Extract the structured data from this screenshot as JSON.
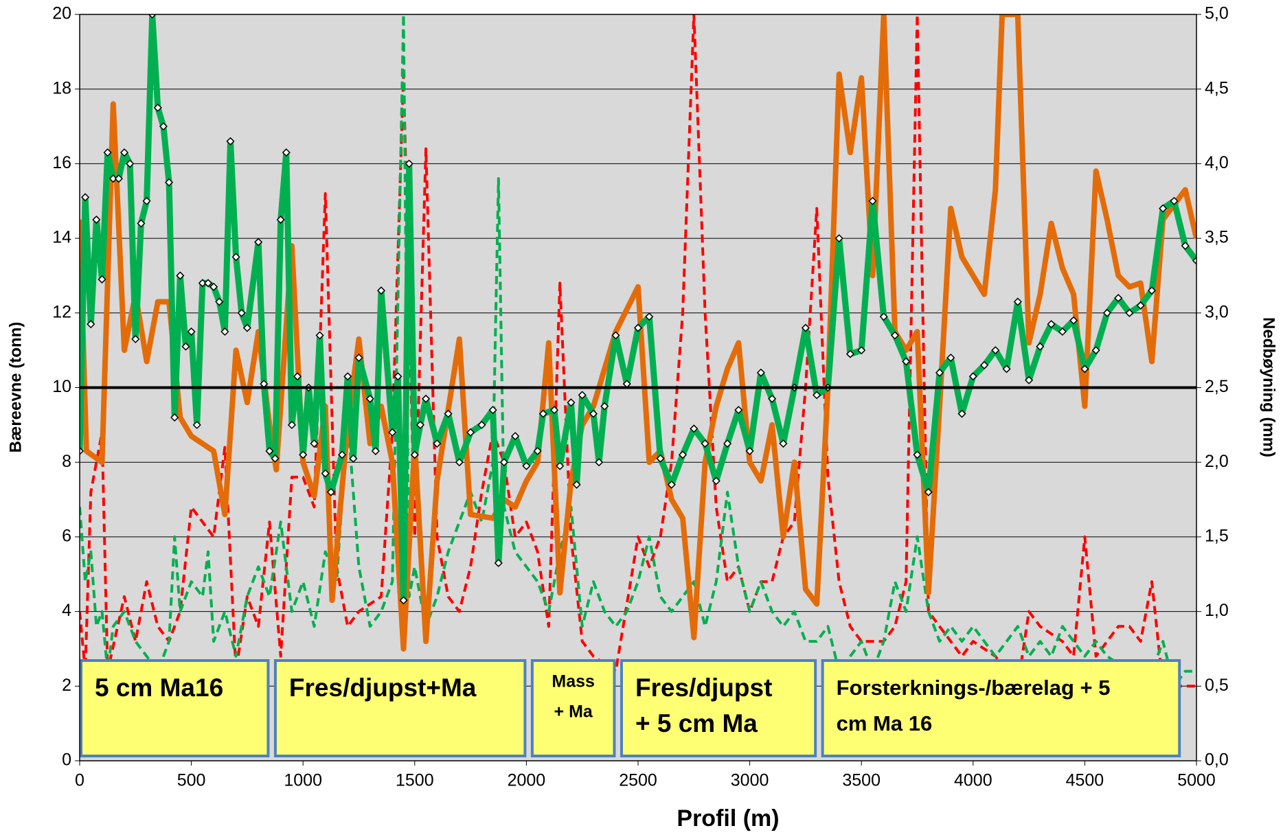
{
  "chart_data": {
    "type": "line",
    "xlabel": "Profil (m)",
    "ylabel": "Bæreevne (tonn)",
    "y2label": "Nedbøyning (mm)",
    "xlim": [
      0,
      5000
    ],
    "xticks": [
      0,
      500,
      1000,
      1500,
      2000,
      2500,
      3000,
      3500,
      4000,
      4500,
      5000
    ],
    "ylim": [
      0,
      20
    ],
    "yticks": [
      0,
      2,
      4,
      6,
      8,
      10,
      12,
      14,
      16,
      18,
      20
    ],
    "y2lim": [
      0,
      5
    ],
    "y2ticks": [
      {
        "value": 0,
        "label": "0,0"
      },
      {
        "value": 0.5,
        "label": "0,5"
      },
      {
        "value": 1,
        "label": "1,0"
      },
      {
        "value": 1.5,
        "label": "1,5"
      },
      {
        "value": 2,
        "label": "2,0"
      },
      {
        "value": 2.5,
        "label": "2,5"
      },
      {
        "value": 3,
        "label": "3,0"
      },
      {
        "value": 3.5,
        "label": "3,5"
      },
      {
        "value": 4,
        "label": "4,0"
      },
      {
        "value": 4.5,
        "label": "4,5"
      },
      {
        "value": 5,
        "label": "5,0"
      }
    ],
    "grid": true,
    "background": "#d9d9d9",
    "reference_line": {
      "value": 10,
      "color": "#000000"
    },
    "series": [
      {
        "color": "#ff0000",
        "axis": "y2",
        "dash": true,
        "x": [
          0,
          25,
          50,
          100,
          125,
          200,
          250,
          300,
          350,
          400,
          450,
          500,
          550,
          600,
          650,
          700,
          750,
          800,
          850,
          900,
          950,
          1000,
          1050,
          1100,
          1150,
          1200,
          1250,
          1350,
          1400,
          1450,
          1500,
          1550,
          1600,
          1650,
          1700,
          1750,
          1800,
          1850,
          1900,
          1950,
          2000,
          2050,
          2100,
          2150,
          2200,
          2250,
          2300,
          2400,
          2500,
          2550,
          2600,
          2650,
          2700,
          2750,
          2800,
          2850,
          2900,
          2950,
          3000,
          3050,
          3100,
          3150,
          3200,
          3250,
          3300,
          3350,
          3400,
          3450,
          3500,
          3600,
          3650,
          3700,
          3750,
          3800,
          3850,
          3900,
          3950,
          4000,
          4100,
          4200,
          4250,
          4300,
          4400,
          4450,
          4500,
          4550,
          4600,
          4650,
          4700,
          4750,
          4800,
          4850,
          4900,
          5000
        ],
        "values": [
          1.0,
          0.6,
          1.8,
          2.2,
          0.6,
          1.1,
          0.8,
          1.2,
          0.9,
          0.8,
          1.0,
          1.7,
          1.6,
          1.5,
          2.1,
          0.6,
          1.1,
          0.9,
          1.6,
          0.7,
          1.9,
          1.9,
          1.7,
          3.8,
          1.3,
          0.9,
          1.0,
          1.1,
          2.2,
          4.6,
          1.5,
          4.1,
          1.5,
          1.1,
          1.0,
          1.3,
          1.8,
          2.2,
          2.0,
          1.5,
          1.6,
          1.4,
          0.9,
          3.2,
          1.5,
          0.8,
          0.7,
          0.6,
          1.5,
          1.3,
          1.5,
          2.0,
          3.0,
          5.0,
          3.0,
          1.7,
          1.2,
          1.3,
          1.0,
          1.2,
          1.2,
          1.5,
          1.6,
          2.5,
          3.7,
          1.9,
          1.2,
          0.9,
          0.8,
          0.8,
          0.9,
          1.2,
          5.0,
          1.0,
          0.9,
          0.8,
          0.7,
          0.8,
          0.7,
          0.5,
          1.0,
          0.9,
          0.8,
          0.7,
          1.5,
          0.7,
          0.8,
          0.9,
          0.9,
          0.8,
          1.2,
          0.5,
          0.5,
          0.5
        ]
      },
      {
        "color": "#00b050",
        "axis": "y2",
        "dash": true,
        "x": [
          0,
          25,
          50,
          75,
          100,
          125,
          150,
          200,
          250,
          300,
          350,
          400,
          425,
          450,
          500,
          550,
          575,
          600,
          650,
          700,
          750,
          800,
          850,
          900,
          950,
          1000,
          1050,
          1100,
          1150,
          1200,
          1250,
          1300,
          1350,
          1400,
          1450,
          1475,
          1500,
          1550,
          1600,
          1650,
          1700,
          1750,
          1800,
          1850,
          1875,
          1900,
          1950,
          2000,
          2050,
          2100,
          2150,
          2200,
          2250,
          2300,
          2350,
          2400,
          2450,
          2500,
          2550,
          2600,
          2650,
          2700,
          2750,
          2800,
          2850,
          2900,
          2950,
          3000,
          3050,
          3100,
          3150,
          3200,
          3250,
          3300,
          3350,
          3400,
          3450,
          3500,
          3550,
          3600,
          3650,
          3700,
          3750,
          3800,
          3850,
          3900,
          3950,
          4000,
          4050,
          4100,
          4150,
          4200,
          4250,
          4300,
          4350,
          4400,
          4450,
          4500,
          4550,
          4600,
          4700,
          4800,
          4850,
          4900,
          4950,
          5000
        ],
        "values": [
          1.7,
          1.2,
          1.4,
          0.9,
          1.0,
          0.6,
          0.9,
          1.0,
          0.8,
          0.7,
          0.6,
          0.8,
          1.5,
          1.0,
          1.2,
          1.1,
          1.4,
          0.8,
          1.0,
          0.7,
          1.1,
          1.3,
          1.1,
          1.6,
          1.0,
          1.2,
          0.9,
          1.4,
          1.2,
          2.3,
          1.3,
          0.9,
          1.0,
          1.2,
          5.0,
          1.1,
          1.3,
          0.9,
          1.1,
          1.4,
          1.6,
          1.8,
          1.6,
          2.0,
          3.9,
          1.7,
          1.4,
          1.3,
          1.2,
          1.0,
          1.4,
          1.7,
          0.9,
          1.2,
          1.0,
          0.9,
          1.0,
          1.2,
          1.5,
          1.1,
          1.0,
          1.1,
          1.2,
          0.9,
          1.2,
          1.8,
          1.3,
          1.0,
          1.2,
          1.0,
          0.9,
          1.0,
          0.8,
          0.8,
          0.9,
          0.6,
          0.7,
          0.8,
          0.6,
          0.8,
          1.2,
          1.0,
          1.5,
          1.0,
          0.8,
          0.9,
          0.8,
          0.9,
          0.8,
          0.7,
          0.8,
          0.9,
          0.7,
          0.8,
          0.7,
          0.9,
          0.8,
          0.7,
          0.8,
          0.7,
          0.6,
          0.6,
          0.8,
          0.5,
          0.6,
          0.6
        ]
      },
      {
        "color": "#e36c09",
        "x": [
          0,
          30,
          100,
          150,
          200,
          250,
          300,
          350,
          400,
          450,
          500,
          600,
          650,
          700,
          750,
          800,
          850,
          880,
          950,
          1000,
          1050,
          1100,
          1130,
          1200,
          1250,
          1300,
          1350,
          1400,
          1450,
          1500,
          1550,
          1600,
          1700,
          1750,
          1850,
          1900,
          1950,
          2000,
          2050,
          2100,
          2150,
          2200,
          2250,
          2300,
          2350,
          2400,
          2500,
          2550,
          2600,
          2650,
          2700,
          2750,
          2800,
          2850,
          2900,
          2950,
          3000,
          3050,
          3100,
          3150,
          3200,
          3250,
          3300,
          3350,
          3400,
          3450,
          3500,
          3550,
          3600,
          3650,
          3700,
          3750,
          3800,
          3850,
          3900,
          3950,
          4050,
          4100,
          4130,
          4200,
          4250,
          4300,
          4350,
          4400,
          4450,
          4500,
          4550,
          4600,
          4650,
          4700,
          4750,
          4800,
          4850,
          4950,
          5000
        ],
        "values": [
          14.5,
          8.3,
          8.0,
          17.6,
          11.0,
          12.5,
          10.7,
          12.3,
          12.3,
          9.2,
          8.7,
          8.3,
          6.6,
          11.0,
          9.6,
          11.5,
          9.0,
          7.8,
          13.8,
          8.0,
          7.1,
          9.5,
          4.3,
          9.0,
          11.3,
          8.5,
          9.5,
          8.0,
          3.0,
          8.5,
          3.2,
          7.5,
          11.3,
          6.6,
          6.5,
          7.0,
          6.8,
          7.5,
          8.0,
          11.2,
          4.5,
          7.5,
          9.0,
          9.5,
          10.5,
          11.5,
          12.7,
          8.0,
          8.3,
          7.0,
          6.5,
          3.3,
          8.0,
          9.5,
          10.5,
          11.2,
          8.0,
          7.5,
          9.0,
          6.0,
          8.0,
          4.6,
          4.2,
          10.0,
          18.4,
          16.3,
          18.3,
          13.0,
          20.0,
          11.5,
          11.0,
          11.5,
          4.5,
          9.5,
          14.8,
          13.5,
          12.5,
          15.3,
          20.0,
          20.0,
          11.2,
          12.5,
          14.4,
          13.2,
          12.5,
          9.5,
          15.8,
          14.5,
          13.0,
          12.7,
          12.8,
          10.7,
          14.5,
          15.3,
          14.0
        ]
      },
      {
        "color": "#00b050",
        "markers": true,
        "x": [
          0,
          25,
          50,
          75,
          100,
          125,
          150,
          175,
          200,
          225,
          250,
          275,
          300,
          325,
          350,
          375,
          400,
          425,
          450,
          475,
          500,
          525,
          550,
          575,
          600,
          625,
          650,
          675,
          700,
          725,
          750,
          800,
          825,
          850,
          875,
          900,
          925,
          950,
          975,
          1000,
          1025,
          1050,
          1075,
          1100,
          1125,
          1175,
          1200,
          1225,
          1250,
          1300,
          1325,
          1350,
          1400,
          1425,
          1450,
          1475,
          1500,
          1525,
          1550,
          1600,
          1650,
          1700,
          1750,
          1800,
          1850,
          1875,
          1900,
          1950,
          2000,
          2050,
          2075,
          2125,
          2150,
          2200,
          2225,
          2250,
          2300,
          2325,
          2350,
          2400,
          2450,
          2500,
          2550,
          2600,
          2650,
          2700,
          2750,
          2800,
          2850,
          2900,
          2950,
          3000,
          3050,
          3100,
          3150,
          3200,
          3250,
          3300,
          3350,
          3400,
          3450,
          3500,
          3550,
          3600,
          3650,
          3700,
          3750,
          3800,
          3850,
          3900,
          3950,
          4000,
          4050,
          4100,
          4150,
          4200,
          4250,
          4300,
          4350,
          4400,
          4450,
          4500,
          4550,
          4600,
          4650,
          4700,
          4750,
          4800,
          4850,
          4900,
          4950,
          5000
        ],
        "values": [
          8.3,
          15.1,
          11.7,
          14.5,
          12.9,
          16.3,
          15.6,
          15.6,
          16.3,
          16.0,
          11.3,
          14.4,
          15.0,
          20.0,
          17.5,
          17.0,
          15.5,
          9.2,
          13.0,
          11.1,
          11.5,
          9.0,
          12.8,
          12.8,
          12.7,
          12.3,
          11.5,
          16.6,
          13.5,
          12.0,
          11.6,
          13.9,
          10.1,
          8.3,
          8.1,
          14.5,
          16.3,
          9.0,
          10.3,
          8.2,
          10.0,
          8.5,
          11.4,
          7.7,
          7.2,
          8.2,
          10.3,
          8.1,
          10.8,
          9.7,
          8.3,
          12.6,
          8.8,
          10.3,
          4.3,
          16.0,
          8.2,
          9.0,
          9.7,
          8.5,
          9.3,
          8.0,
          8.8,
          9.0,
          9.4,
          5.3,
          8.0,
          8.7,
          7.9,
          8.3,
          9.3,
          9.4,
          7.9,
          9.6,
          7.4,
          9.8,
          9.3,
          8.0,
          9.5,
          11.4,
          10.1,
          11.6,
          11.9,
          8.1,
          7.4,
          8.2,
          8.9,
          8.5,
          7.5,
          8.5,
          9.4,
          8.3,
          10.4,
          9.7,
          8.5,
          10.0,
          11.6,
          9.8,
          10.0,
          14.0,
          10.9,
          11.0,
          15.0,
          11.9,
          11.4,
          10.7,
          8.2,
          7.2,
          10.4,
          10.8,
          9.3,
          10.3,
          10.6,
          11.0,
          10.5,
          12.3,
          10.2,
          11.1,
          11.7,
          11.5,
          11.8,
          10.5,
          11.0,
          12.0,
          12.4,
          12.0,
          12.2,
          12.6,
          14.8,
          15.0,
          13.8,
          13.4
        ]
      }
    ],
    "sections": [
      {
        "lines": [
          "5 cm Ma16"
        ],
        "start": 0,
        "end": 850
      },
      {
        "lines": [
          "Fres/djupst+Ma"
        ],
        "start": 870,
        "end": 2000
      },
      {
        "lines": [
          "Mass",
          "+ Ma"
        ],
        "start": 2020,
        "end": 2400
      },
      {
        "lines": [
          "Fres/djupst",
          "+ 5 cm Ma"
        ],
        "start": 2420,
        "end": 3300
      },
      {
        "lines": [
          "Forsterknings-/bærelag + 5",
          "cm Ma 16"
        ],
        "start": 3320,
        "end": 4930
      }
    ]
  }
}
